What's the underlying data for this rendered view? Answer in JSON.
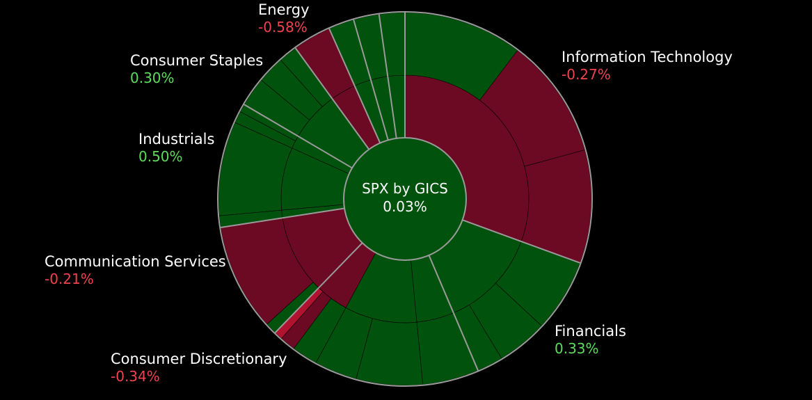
{
  "chart_data": {
    "type": "sunburst",
    "title": "SPX by GICS",
    "total_change": "0.03%",
    "colors": {
      "positive": "#00520d",
      "negative": "#6b0a22",
      "strong_negative": "#b0122f",
      "ring": "#9a9a9a",
      "label_positive": "#5ddc5d",
      "label_negative": "#f0424f"
    },
    "sectors": [
      {
        "name": "Information Technology",
        "change": "-0.27%",
        "sign": "neg",
        "weight": 30.3,
        "industries": [
          {
            "weight": 30.3,
            "sign": "neg",
            "subs": [
              {
                "weight": 8.2,
                "sign": "pos"
              },
              {
                "weight": 8.3,
                "sign": "neg"
              },
              {
                "weight": 7.8,
                "sign": "neg"
              }
            ]
          }
        ]
      },
      {
        "name": "Financials",
        "change": "0.33%",
        "sign": "pos",
        "weight": 12.9,
        "industries": [
          {
            "weight": 12.9,
            "sign": "pos",
            "subs": [
              {
                "weight": 5.6,
                "sign": "pos"
              },
              {
                "weight": 3.9,
                "sign": "pos"
              },
              {
                "weight": 2.0,
                "sign": "pos"
              }
            ]
          }
        ]
      },
      {
        "name": "Consumer Discretionary",
        "change": "-0.34%",
        "sign": "neg",
        "weight": 18.5,
        "industries": [
          {
            "weight": 6.3,
            "sign": "pos",
            "subs": [
              {
                "weight": 6.3,
                "sign": "pos"
              }
            ]
          },
          {
            "weight": 12.2,
            "sign": "pos",
            "subs": [
              {
                "weight": 7.6,
                "sign": "pos"
              },
              {
                "weight": 4.9,
                "sign": "pos"
              }
            ]
          },
          {
            "weight": 5.6,
            "sign": "neg",
            "subs": [
              {
                "weight": 4.6,
                "sign": "pos"
              },
              {
                "weight": 2.8,
                "sign": "neg"
              },
              {
                "weight": 1.5,
                "sign": "strong_neg"
              }
            ]
          }
        ]
      },
      {
        "name": "Communication Services",
        "change": "-0.21%",
        "sign": "neg",
        "weight": 10.2,
        "industries": [
          {
            "weight": 10.2,
            "sign": "neg",
            "subs": [
              {
                "weight": 1.0,
                "sign": "pos"
              },
              {
                "weight": 9.2,
                "sign": "neg"
              }
            ]
          }
        ]
      },
      {
        "name": "Industrials",
        "change": "0.50%",
        "sign": "pos",
        "weight": 10.8,
        "industries": [
          {
            "weight": 1.0,
            "sign": "pos",
            "subs": [
              {
                "weight": 1.0,
                "sign": "pos"
              }
            ]
          },
          {
            "weight": 8.1,
            "sign": "pos",
            "subs": [
              {
                "weight": 8.1,
                "sign": "pos"
              }
            ]
          },
          {
            "weight": 1.7,
            "sign": "pos",
            "subs": [
              {
                "weight": 2.2,
                "sign": "pos"
              },
              {
                "weight": 1.5,
                "sign": "pos"
              }
            ]
          }
        ]
      },
      {
        "name": "Consumer Staples",
        "change": "0.30%",
        "sign": "pos",
        "weight": 6.5,
        "industries": [
          {
            "weight": 6.5,
            "sign": "pos",
            "subs": [
              {
                "weight": 3.0,
                "sign": "pos"
              },
              {
                "weight": 2.8,
                "sign": "pos"
              },
              {
                "weight": 1.9,
                "sign": "pos"
              }
            ]
          }
        ]
      },
      {
        "name": "Energy",
        "change": "-0.58%",
        "sign": "neg",
        "weight": 3.3,
        "industries": [
          {
            "weight": 3.3,
            "sign": "neg",
            "subs": [
              {
                "weight": 3.3,
                "sign": "neg"
              }
            ]
          }
        ]
      },
      {
        "name": "",
        "change": "",
        "sign": "pos",
        "weight": 2.2,
        "industries": [
          {
            "weight": 2.2,
            "sign": "pos",
            "subs": [
              {
                "weight": 2.2,
                "sign": "pos"
              }
            ]
          }
        ]
      },
      {
        "name": "",
        "change": "",
        "sign": "pos",
        "weight": 2.2,
        "industries": [
          {
            "weight": 2.2,
            "sign": "pos",
            "subs": [
              {
                "weight": 2.2,
                "sign": "pos"
              }
            ]
          }
        ]
      },
      {
        "name": "",
        "change": "",
        "sign": "pos",
        "weight": 2.2,
        "industries": [
          {
            "weight": 2.2,
            "sign": "pos",
            "subs": [
              {
                "weight": 2.2,
                "sign": "pos"
              }
            ]
          }
        ]
      }
    ]
  },
  "labels": {
    "energy": {
      "name": "Energy",
      "value": "-0.58%"
    },
    "consumer_staples": {
      "name": "Consumer Staples",
      "value": "0.30%"
    },
    "industrials": {
      "name": "Industrials",
      "value": "0.50%"
    },
    "communication_services": {
      "name": "Communication Services",
      "value": "-0.21%"
    },
    "consumer_discretionary": {
      "name": "Consumer Discretionary",
      "value": "-0.34%"
    },
    "information_technology": {
      "name": "Information Technology",
      "value": "-0.27%"
    },
    "financials": {
      "name": "Financials",
      "value": "0.33%"
    }
  }
}
